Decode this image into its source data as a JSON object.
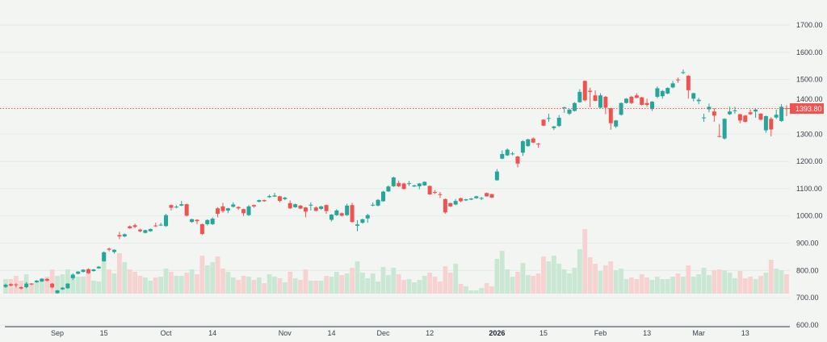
{
  "chart_data": {
    "type": "candlestick",
    "title": "",
    "xlabel": "",
    "ylabel": "",
    "ylim": [
      600,
      1700
    ],
    "y_ticks": [
      "600.00",
      "700.00",
      "800.00",
      "900.00",
      "1000.00",
      "1100.00",
      "1200.00",
      "1300.00",
      "1400.00",
      "1500.00",
      "1600.00",
      "1700.00"
    ],
    "x_ticks": [
      {
        "label": "Sep",
        "index": 10
      },
      {
        "label": "15",
        "index": 19
      },
      {
        "label": "Oct",
        "index": 31
      },
      {
        "label": "14",
        "index": 40
      },
      {
        "label": "Nov",
        "index": 54
      },
      {
        "label": "14",
        "index": 63
      },
      {
        "label": "Dec",
        "index": 73
      },
      {
        "label": "12",
        "index": 82
      },
      {
        "label": "2026",
        "index": 95,
        "bold": true
      },
      {
        "label": "15",
        "index": 104
      },
      {
        "label": "Feb",
        "index": 115
      },
      {
        "label": "13",
        "index": 124
      },
      {
        "label": "Mar",
        "index": 134
      },
      {
        "label": "13",
        "index": 143
      }
    ],
    "grid": "horizontal",
    "last_price": 1393.8,
    "last_price_label": "1393.80",
    "colors": {
      "up": "#26a69a",
      "down": "#ef5350",
      "up_volume": "#c9e7d3",
      "down_volume": "#f6d2d1",
      "background": "#f2f5f2",
      "last_price": "#ef5350"
    },
    "ohlc_columns": [
      "open",
      "high",
      "low",
      "close"
    ],
    "ohlc": [
      [
        740,
        752,
        736,
        748
      ],
      [
        750,
        753,
        742,
        745
      ],
      [
        749,
        753,
        738,
        747
      ],
      [
        739,
        742,
        731,
        734
      ],
      [
        739,
        758,
        735,
        752
      ],
      [
        752,
        754,
        746,
        749
      ],
      [
        757,
        765,
        755,
        763
      ],
      [
        760,
        772,
        758,
        770
      ],
      [
        769,
        772,
        760,
        763
      ],
      [
        752,
        754,
        735,
        738
      ],
      [
        717,
        729,
        715,
        727
      ],
      [
        731,
        739,
        729,
        737
      ],
      [
        735,
        754,
        733,
        752
      ],
      [
        772,
        790,
        765,
        785
      ],
      [
        788,
        798,
        786,
        796
      ],
      [
        795,
        805,
        793,
        803
      ],
      [
        805,
        808,
        788,
        790
      ],
      [
        798,
        806,
        796,
        804
      ],
      [
        808,
        816,
        806,
        814
      ],
      [
        834,
        870,
        832,
        867
      ],
      [
        880,
        884,
        870,
        876
      ],
      [
        868,
        878,
        862,
        876
      ],
      [
        930,
        942,
        915,
        925
      ],
      [
        925,
        936,
        922,
        933
      ],
      [
        962,
        965,
        953,
        955
      ],
      [
        966,
        972,
        955,
        960
      ],
      [
        950,
        953,
        940,
        944
      ],
      [
        938,
        950,
        936,
        948
      ],
      [
        944,
        954,
        942,
        952
      ],
      [
        965,
        975,
        960,
        962
      ],
      [
        966,
        975,
        963,
        968
      ],
      [
        963,
        1008,
        960,
        1003
      ],
      [
        1040,
        1042,
        1020,
        1030
      ],
      [
        1032,
        1040,
        1028,
        1034
      ],
      [
        1038,
        1055,
        1036,
        1043
      ],
      [
        1043,
        1045,
        998,
        1001
      ],
      [
        978,
        990,
        975,
        988
      ],
      [
        986,
        988,
        970,
        981
      ],
      [
        970,
        972,
        930,
        934
      ],
      [
        970,
        988,
        965,
        985
      ],
      [
        970,
        995,
        967,
        990
      ],
      [
        1028,
        1032,
        995,
        1008
      ],
      [
        1035,
        1048,
        1012,
        1018
      ],
      [
        1020,
        1030,
        1010,
        1028
      ],
      [
        1034,
        1050,
        1031,
        1042
      ],
      [
        1033,
        1035,
        1022,
        1028
      ],
      [
        1025,
        1027,
        1000,
        1010
      ],
      [
        1003,
        1040,
        1000,
        1035
      ],
      [
        1040,
        1042,
        1030,
        1035
      ],
      [
        1052,
        1060,
        1050,
        1058
      ],
      [
        1058,
        1060,
        1052,
        1054
      ],
      [
        1069,
        1078,
        1066,
        1073
      ],
      [
        1071,
        1085,
        1070,
        1075
      ],
      [
        1072,
        1074,
        1050,
        1055
      ],
      [
        1062,
        1070,
        1058,
        1067
      ],
      [
        1047,
        1057,
        1026,
        1028
      ],
      [
        1032,
        1045,
        1030,
        1043
      ],
      [
        1038,
        1040,
        1025,
        1027
      ],
      [
        1031,
        1033,
        995,
        1016
      ],
      [
        1039,
        1050,
        1020,
        1041
      ],
      [
        1031,
        1035,
        1016,
        1019
      ],
      [
        1026,
        1037,
        1022,
        1035
      ],
      [
        1040,
        1042,
        1008,
        1018
      ],
      [
        986,
        1007,
        980,
        1005
      ],
      [
        1003,
        1025,
        1000,
        1020
      ],
      [
        1010,
        1013,
        998,
        1001
      ],
      [
        1003,
        1045,
        1000,
        1038
      ],
      [
        1040,
        1048,
        975,
        978
      ],
      [
        964,
        985,
        944,
        969
      ],
      [
        975,
        990,
        972,
        988
      ],
      [
        991,
        1008,
        975,
        1003
      ],
      [
        1039,
        1050,
        1035,
        1041
      ],
      [
        1038,
        1062,
        1035,
        1059
      ],
      [
        1054,
        1092,
        1052,
        1089
      ],
      [
        1090,
        1112,
        1088,
        1108
      ],
      [
        1109,
        1144,
        1106,
        1141
      ],
      [
        1121,
        1130,
        1106,
        1109
      ],
      [
        1119,
        1122,
        1097,
        1099
      ],
      [
        1118,
        1128,
        1110,
        1120
      ],
      [
        1108,
        1114,
        1106,
        1112
      ],
      [
        1109,
        1121,
        1098,
        1119
      ],
      [
        1112,
        1127,
        1110,
        1125
      ],
      [
        1110,
        1112,
        1077,
        1079
      ],
      [
        1088,
        1095,
        1080,
        1086
      ],
      [
        1080,
        1088,
        1066,
        1078
      ],
      [
        1062,
        1064,
        1008,
        1013
      ],
      [
        1047,
        1049,
        1033,
        1035
      ],
      [
        1042,
        1062,
        1040,
        1055
      ],
      [
        1065,
        1067,
        1050,
        1054
      ],
      [
        1057,
        1063,
        1055,
        1061
      ],
      [
        1060,
        1066,
        1058,
        1064
      ],
      [
        1065,
        1074,
        1063,
        1072
      ],
      [
        1063,
        1070,
        1058,
        1066
      ],
      [
        1084,
        1086,
        1070,
        1072
      ],
      [
        1080,
        1081,
        1066,
        1067
      ],
      [
        1131,
        1172,
        1129,
        1163
      ],
      [
        1210,
        1240,
        1208,
        1227
      ],
      [
        1222,
        1248,
        1220,
        1243
      ],
      [
        1227,
        1235,
        1222,
        1229
      ],
      [
        1218,
        1220,
        1178,
        1192
      ],
      [
        1232,
        1278,
        1220,
        1274
      ],
      [
        1256,
        1283,
        1254,
        1281
      ],
      [
        1284,
        1288,
        1267,
        1269
      ],
      [
        1265,
        1268,
        1250,
        1263
      ],
      [
        1353,
        1355,
        1329,
        1331
      ],
      [
        1357,
        1375,
        1345,
        1359
      ],
      [
        1322,
        1330,
        1315,
        1328
      ],
      [
        1330,
        1370,
        1326,
        1360
      ],
      [
        1396,
        1400,
        1378,
        1398
      ],
      [
        1375,
        1392,
        1370,
        1390
      ],
      [
        1385,
        1417,
        1383,
        1414
      ],
      [
        1417,
        1465,
        1415,
        1455
      ],
      [
        1495,
        1497,
        1420,
        1424
      ],
      [
        1459,
        1470,
        1399,
        1455
      ],
      [
        1442,
        1460,
        1420,
        1422
      ],
      [
        1397,
        1450,
        1395,
        1442
      ],
      [
        1437,
        1440,
        1373,
        1397
      ],
      [
        1395,
        1397,
        1316,
        1340
      ],
      [
        1328,
        1352,
        1322,
        1350
      ],
      [
        1371,
        1416,
        1368,
        1414
      ],
      [
        1414,
        1432,
        1412,
        1430
      ],
      [
        1437,
        1440,
        1410,
        1414
      ],
      [
        1442,
        1450,
        1431,
        1433
      ],
      [
        1435,
        1437,
        1405,
        1407
      ],
      [
        1414,
        1430,
        1400,
        1407
      ],
      [
        1392,
        1421,
        1385,
        1419
      ],
      [
        1437,
        1475,
        1432,
        1468
      ],
      [
        1439,
        1462,
        1430,
        1458
      ],
      [
        1449,
        1472,
        1446,
        1469
      ],
      [
        1471,
        1495,
        1468,
        1486
      ],
      [
        1500,
        1507,
        1488,
        1498
      ],
      [
        1524,
        1537,
        1520,
        1527
      ],
      [
        1514,
        1516,
        1430,
        1461
      ],
      [
        1430,
        1452,
        1420,
        1450
      ],
      [
        1421,
        1433,
        1410,
        1426
      ],
      [
        1359,
        1375,
        1345,
        1361
      ],
      [
        1391,
        1412,
        1380,
        1400
      ],
      [
        1383,
        1395,
        1345,
        1368
      ],
      [
        1293,
        1337,
        1288,
        1291
      ],
      [
        1284,
        1358,
        1280,
        1356
      ],
      [
        1373,
        1400,
        1370,
        1383
      ],
      [
        1385,
        1400,
        1375,
        1387
      ],
      [
        1373,
        1375,
        1340,
        1350
      ],
      [
        1368,
        1370,
        1343,
        1345
      ],
      [
        1380,
        1390,
        1370,
        1373
      ],
      [
        1383,
        1394,
        1360,
        1390
      ],
      [
        1375,
        1377,
        1350,
        1353
      ],
      [
        1314,
        1368,
        1305,
        1366
      ],
      [
        1356,
        1362,
        1292,
        1317
      ],
      [
        1361,
        1390,
        1355,
        1371
      ],
      [
        1348,
        1410,
        1345,
        1400
      ],
      [
        1395,
        1406,
        1366,
        1393.8
      ]
    ],
    "volume_relative": [
      18,
      18,
      22,
      16,
      24,
      13,
      14,
      18,
      21,
      30,
      22,
      24,
      30,
      22,
      21,
      21,
      27,
      16,
      15,
      50,
      30,
      25,
      50,
      39,
      30,
      27,
      22,
      20,
      16,
      20,
      21,
      31,
      27,
      22,
      22,
      26,
      30,
      24,
      47,
      35,
      39,
      46,
      31,
      27,
      20,
      17,
      22,
      21,
      17,
      20,
      13,
      24,
      21,
      19,
      14,
      27,
      19,
      17,
      30,
      16,
      16,
      16,
      22,
      21,
      27,
      23,
      25,
      32,
      40,
      26,
      19,
      25,
      15,
      33,
      23,
      32,
      24,
      17,
      18,
      14,
      17,
      22,
      26,
      21,
      15,
      34,
      26,
      37,
      12,
      9,
      4,
      4,
      7,
      13,
      9,
      43,
      53,
      30,
      21,
      27,
      38,
      23,
      22,
      25,
      46,
      40,
      47,
      37,
      30,
      25,
      32,
      55,
      80,
      45,
      37,
      28,
      35,
      40,
      29,
      31,
      18,
      20,
      18,
      24,
      20,
      17,
      21,
      18,
      18,
      21,
      25,
      21,
      35,
      21,
      24,
      32,
      23,
      29,
      30,
      29,
      26,
      19,
      28,
      19,
      21,
      18,
      22,
      26,
      42,
      31,
      29,
      24
    ]
  }
}
